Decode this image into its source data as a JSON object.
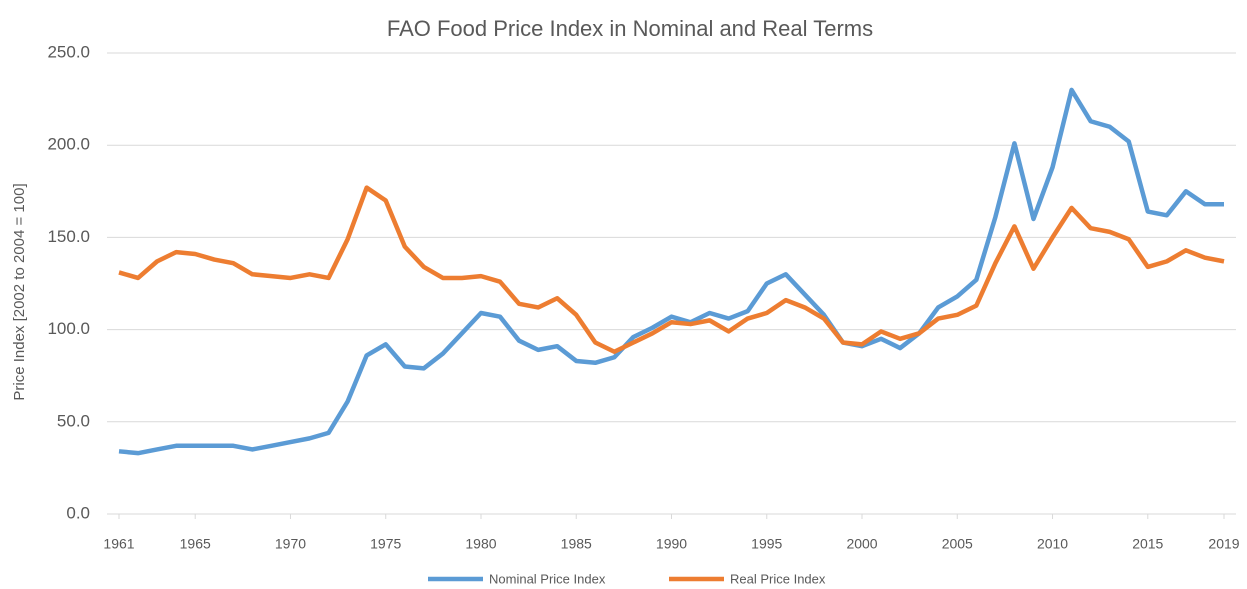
{
  "chart_data": {
    "type": "line",
    "title": "FAO Food Price Index in Nominal and Real Terms",
    "y_label": "Price Index  [2002 to 2004 = 100]",
    "x": [
      1961,
      1962,
      1963,
      1964,
      1965,
      1966,
      1967,
      1968,
      1969,
      1970,
      1971,
      1972,
      1973,
      1974,
      1975,
      1976,
      1977,
      1978,
      1979,
      1980,
      1981,
      1982,
      1983,
      1984,
      1985,
      1986,
      1987,
      1988,
      1989,
      1990,
      1991,
      1992,
      1993,
      1994,
      1995,
      1996,
      1997,
      1998,
      1999,
      2000,
      2001,
      2002,
      2003,
      2004,
      2005,
      2006,
      2007,
      2008,
      2009,
      2010,
      2011,
      2012,
      2013,
      2014,
      2015,
      2016,
      2017,
      2018,
      2019
    ],
    "series": [
      {
        "name": "Nominal Price Index",
        "color": "#5b9bd5",
        "values": [
          34,
          33,
          35,
          37,
          37,
          37,
          37,
          35,
          37,
          39,
          41,
          44,
          61,
          86,
          92,
          80,
          79,
          87,
          98,
          109,
          107,
          94,
          89,
          91,
          83,
          82,
          85,
          96,
          101,
          107,
          104,
          109,
          106,
          110,
          125,
          130,
          119,
          108,
          93,
          91,
          95,
          90,
          98,
          112,
          118,
          127,
          161,
          201,
          160,
          188,
          230,
          213,
          210,
          202,
          164,
          162,
          175,
          168,
          168
        ]
      },
      {
        "name": "Real Price Index",
        "color": "#ed7d31",
        "values": [
          131,
          128,
          137,
          142,
          141,
          138,
          136,
          130,
          129,
          128,
          130,
          128,
          149,
          177,
          170,
          145,
          134,
          128,
          128,
          129,
          126,
          114,
          112,
          117,
          108,
          93,
          88,
          93,
          98,
          104,
          103,
          105,
          99,
          106,
          109,
          116,
          112,
          106,
          93,
          92,
          99,
          95,
          98,
          106,
          108,
          113,
          136,
          156,
          133,
          150,
          166,
          155,
          153,
          149,
          134,
          137,
          143,
          139,
          137
        ]
      }
    ],
    "xlim": [
      1961,
      2019
    ],
    "xticks": [
      1961,
      1965,
      1970,
      1975,
      1980,
      1985,
      1990,
      1995,
      2000,
      2005,
      2010,
      2015,
      2019
    ],
    "ylim": [
      0,
      250
    ],
    "yticks": [
      {
        "value": 0,
        "label": "0.0"
      },
      {
        "value": 50,
        "label": "50.0"
      },
      {
        "value": 100,
        "label": "100.0"
      },
      {
        "value": 150,
        "label": "150.0"
      },
      {
        "value": 200,
        "label": "200.0"
      },
      {
        "value": 250,
        "label": "250.0"
      }
    ],
    "grid": true,
    "legend": "bottom"
  }
}
